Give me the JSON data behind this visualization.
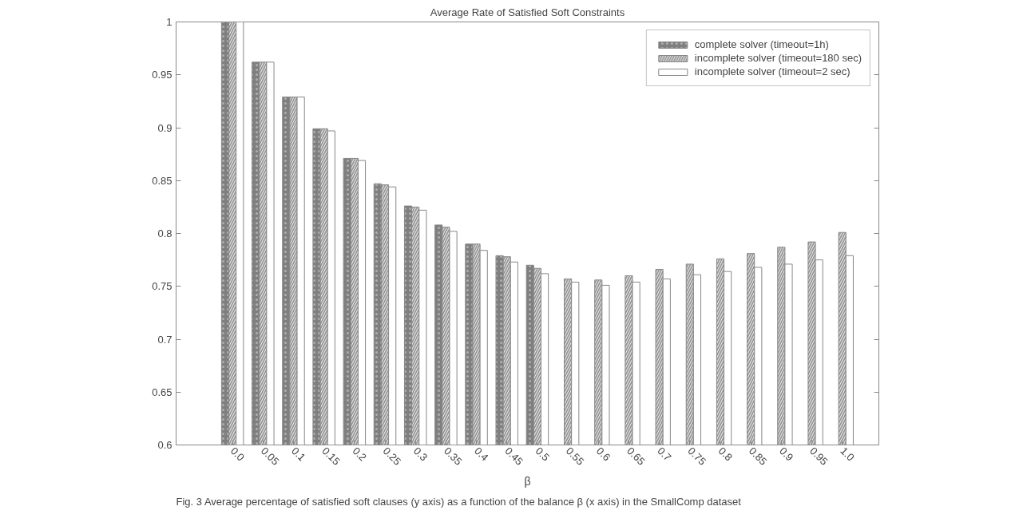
{
  "chart_data": {
    "type": "bar",
    "title": "Average Rate of Satisfied Soft Constraints",
    "xlabel": "β",
    "categories": [
      "0.0",
      "0.05",
      "0.1",
      "0.15",
      "0.2",
      "0.25",
      "0.3",
      "0.35",
      "0.4",
      "0.45",
      "0.5",
      "0.55",
      "0.6",
      "0.65",
      "0.7",
      "0.75",
      "0.8",
      "0.85",
      "0.9",
      "0.95",
      "1.0"
    ],
    "series": [
      {
        "name": "complete solver (timeout=1h)",
        "color": "#7f7f7f",
        "values": [
          1,
          0.962,
          0.929,
          0.899,
          0.871,
          0.847,
          0.826,
          0.808,
          0.79,
          0.779,
          0.77,
          null,
          null,
          null,
          null,
          null,
          null,
          null,
          null,
          null,
          null
        ]
      },
      {
        "name": "incomplete solver (timeout=180 sec)",
        "color": "#9a9a9a",
        "values": [
          1,
          0.962,
          0.929,
          0.899,
          0.871,
          0.846,
          0.825,
          0.806,
          0.79,
          0.778,
          0.767,
          0.757,
          0.756,
          0.76,
          0.766,
          0.771,
          0.776,
          0.781,
          0.787,
          0.792,
          0.801
        ]
      },
      {
        "name": "incomplete solver (timeout=2 sec)",
        "color": "#ffffff",
        "values": [
          1,
          0.962,
          0.929,
          0.897,
          0.869,
          0.844,
          0.822,
          0.802,
          0.784,
          0.773,
          0.762,
          0.754,
          0.751,
          0.754,
          0.757,
          0.761,
          0.764,
          0.768,
          0.771,
          0.775,
          0.779
        ]
      }
    ],
    "ylim": [
      0.6,
      1
    ],
    "yticks": [
      0.6,
      0.65,
      0.7,
      0.75,
      0.8,
      0.85,
      0.9,
      0.95,
      1
    ],
    "grid": false,
    "legend": "top right",
    "annotations": [
      "Fig. 3 Average percentage of satisfied soft clauses (y axis) as a function of the balance β (x axis) in the SmallComp dataset"
    ]
  }
}
